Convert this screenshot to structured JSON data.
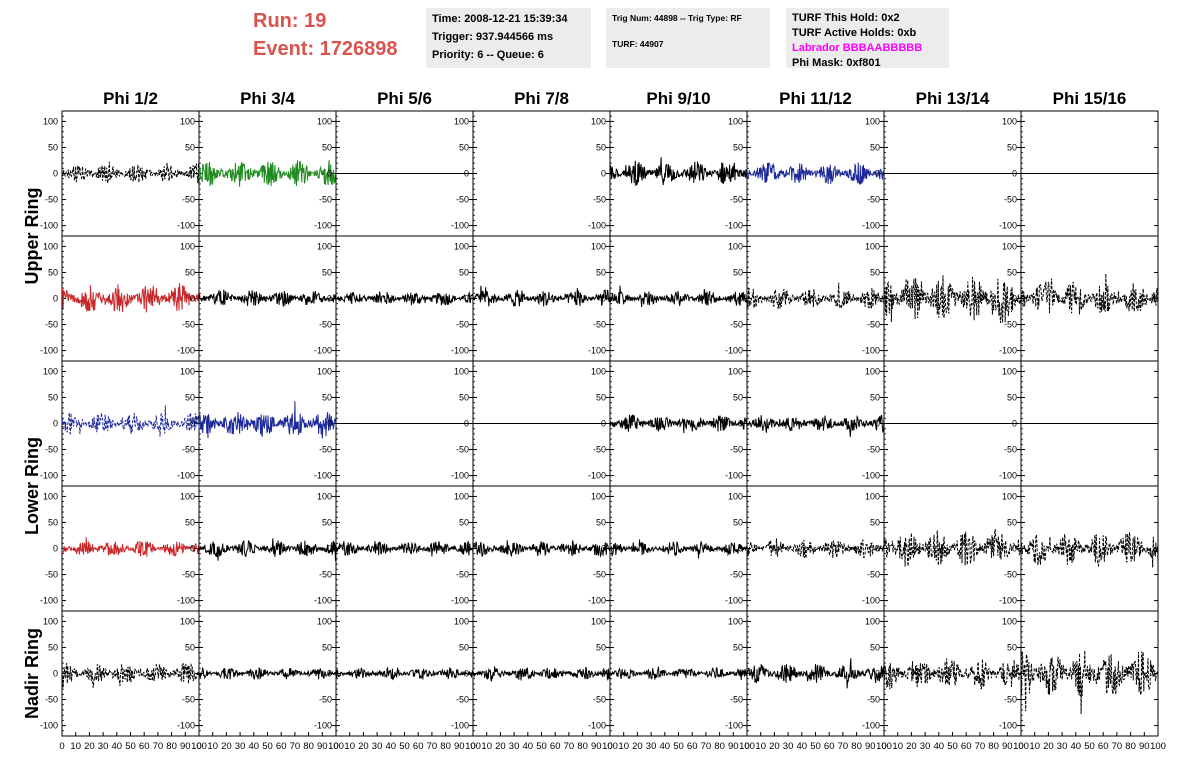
{
  "header": {
    "run_label": "Run:    19",
    "event_label": "Event: 1726898",
    "time": "Time: 2008-12-21 15:39:34",
    "trigger": "Trigger: 937.944566 ms",
    "priority_queue": "Priority: 6 -- Queue: 6",
    "trig_num_type": "Trig Num: 44898 -- Trig Type: RF",
    "turf": "TURF: 44907",
    "turf_this_hold": "TURF This Hold: 0x2",
    "turf_active_holds": "TURF Active Holds: 0xb",
    "labrador": "Labrador BBBAABBBBB",
    "phi_mask": "Phi Mask: 0xf801",
    "labrador_color": "#ff00ff",
    "run_event_color": "#d9534f"
  },
  "chart_data": {
    "type": "line",
    "column_titles": [
      "Phi 1/2",
      "Phi 3/4",
      "Phi 5/6",
      "Phi 7/8",
      "Phi 9/10",
      "Phi 11/12",
      "Phi 13/14",
      "Phi 15/16"
    ],
    "row_group_labels": [
      "Upper Ring",
      "Lower Ring",
      "Nadir Ring"
    ],
    "ylim": [
      -120,
      120
    ],
    "xlim": [
      0,
      100
    ],
    "y_ticks": [
      "100",
      "50",
      "0",
      "-50",
      "-100"
    ],
    "x_ticks": [
      "0",
      "10",
      "20",
      "30",
      "40",
      "50",
      "60",
      "70",
      "80",
      "90",
      "100"
    ],
    "trace_colors": {
      "black": "#000000",
      "red": "#c8282a",
      "green": "#1f8a1f",
      "blue": "#1f2a9a"
    },
    "panels": [
      [
        {
          "amp": 16,
          "color": "black",
          "style": "dashed",
          "seed": 11
        },
        {
          "amp": 22,
          "color": "green",
          "style": "solid",
          "seed": 12
        },
        {
          "amp": 0,
          "color": "black",
          "style": "solid",
          "seed": 13
        },
        {
          "amp": null,
          "color": "black",
          "style": "solid",
          "seed": 14
        },
        {
          "amp": 20,
          "color": "black",
          "style": "solid",
          "seed": 15
        },
        {
          "amp": 18,
          "color": "blue",
          "style": "solid",
          "seed": 16
        },
        {
          "amp": 0,
          "color": "black",
          "style": "solid",
          "seed": 17
        },
        {
          "amp": 0,
          "color": "black",
          "style": "solid",
          "seed": 18
        }
      ],
      [
        {
          "amp": 25,
          "color": "red",
          "style": "solid",
          "seed": 21
        },
        {
          "amp": 14,
          "color": "black",
          "style": "solid",
          "seed": 22
        },
        {
          "amp": 12,
          "color": "black",
          "style": "solid",
          "seed": 23
        },
        {
          "amp": 14,
          "color": "black",
          "style": "solid",
          "seed": 24
        },
        {
          "amp": 12,
          "color": "black",
          "style": "solid",
          "seed": 25
        },
        {
          "amp": 18,
          "color": "black",
          "style": "dashed",
          "seed": 26
        },
        {
          "amp": 40,
          "color": "black",
          "style": "dashed",
          "seed": 27
        },
        {
          "amp": 30,
          "color": "black",
          "style": "dashed",
          "seed": 28
        }
      ],
      [
        {
          "amp": 18,
          "color": "blue",
          "style": "dashed",
          "seed": 31
        },
        {
          "amp": 22,
          "color": "blue",
          "style": "solid",
          "seed": 32
        },
        {
          "amp": 0,
          "color": "black",
          "style": "solid",
          "seed": 33
        },
        {
          "amp": 0,
          "color": "black",
          "style": "solid",
          "seed": 34
        },
        {
          "amp": 14,
          "color": "black",
          "style": "solid",
          "seed": 35
        },
        {
          "amp": 14,
          "color": "black",
          "style": "solid",
          "seed": 36
        },
        {
          "amp": 0,
          "color": "black",
          "style": "solid",
          "seed": 37
        },
        {
          "amp": 0,
          "color": "black",
          "style": "solid",
          "seed": 38
        }
      ],
      [
        {
          "amp": 14,
          "color": "red",
          "style": "solid",
          "seed": 41
        },
        {
          "amp": 14,
          "color": "black",
          "style": "solid",
          "seed": 42
        },
        {
          "amp": 12,
          "color": "black",
          "style": "solid",
          "seed": 43
        },
        {
          "amp": 13,
          "color": "black",
          "style": "solid",
          "seed": 44
        },
        {
          "amp": 12,
          "color": "black",
          "style": "solid",
          "seed": 45
        },
        {
          "amp": 16,
          "color": "black",
          "style": "dashed",
          "seed": 46
        },
        {
          "amp": 30,
          "color": "black",
          "style": "dashed",
          "seed": 47
        },
        {
          "amp": 28,
          "color": "black",
          "style": "dashed",
          "seed": 48
        }
      ],
      [
        {
          "amp": 18,
          "color": "black",
          "style": "dashed",
          "seed": 51
        },
        {
          "amp": 10,
          "color": "black",
          "style": "solid",
          "seed": 52
        },
        {
          "amp": 10,
          "color": "black",
          "style": "solid",
          "seed": 53
        },
        {
          "amp": 12,
          "color": "black",
          "style": "solid",
          "seed": 54
        },
        {
          "amp": 10,
          "color": "black",
          "style": "solid",
          "seed": 55
        },
        {
          "amp": 16,
          "color": "black",
          "style": "solid",
          "seed": 56
        },
        {
          "amp": 26,
          "color": "black",
          "style": "dashed",
          "seed": 57
        },
        {
          "amp": 40,
          "color": "black",
          "style": "dashed",
          "seed": 58
        }
      ]
    ]
  }
}
